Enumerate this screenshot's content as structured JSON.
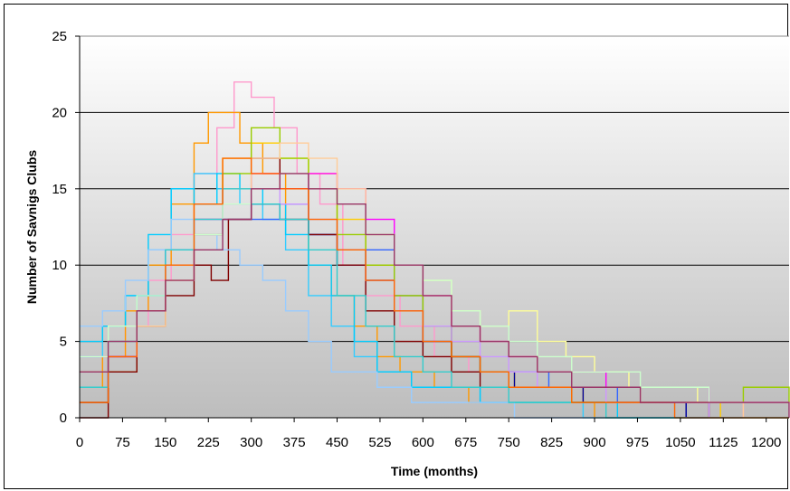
{
  "chart_data": {
    "type": "line",
    "title": "",
    "xlabel": "Time (months)",
    "ylabel": "Number of Savnigs Clubs",
    "xlim": [
      0,
      1240
    ],
    "ylim": [
      0,
      25
    ],
    "x_ticks": [
      "0",
      "75",
      "150",
      "225",
      "300",
      "375",
      "450",
      "525",
      "600",
      "675",
      "750",
      "825",
      "900",
      "975",
      "1050",
      "1125",
      "1200"
    ],
    "y_ticks": [
      "0",
      "5",
      "10",
      "15",
      "20",
      "25"
    ],
    "grid": "horizontal",
    "legend": "none",
    "colors": [
      "#ff99cc",
      "#ff9900",
      "#ffcc00",
      "#ffff99",
      "#33ccff",
      "#00ccff",
      "#3366ff",
      "#000099",
      "#800000",
      "#99cc00",
      "#ff00ff",
      "#cc99ff",
      "#99ccff",
      "#ffcc99",
      "#33cccc",
      "#ccffcc",
      "#ff6600",
      "#993366"
    ],
    "series": [
      {
        "x": [
          0,
          40,
          80,
          120,
          160,
          200,
          240,
          270,
          300,
          340,
          380,
          420,
          460,
          500,
          560,
          620,
          680,
          740,
          800,
          860,
          920,
          980,
          1040,
          1100,
          1160,
          1240
        ],
        "values": [
          3,
          4,
          6,
          9,
          12,
          16,
          19,
          22,
          21,
          19,
          16,
          14,
          10,
          8,
          6,
          4,
          3,
          3,
          2,
          2,
          1,
          1,
          1,
          1,
          0,
          0
        ]
      },
      {
        "x": [
          0,
          40,
          80,
          120,
          160,
          200,
          225,
          250,
          280,
          320,
          360,
          400,
          440,
          480,
          520,
          560,
          620,
          680,
          740,
          820,
          900,
          980,
          1060,
          1140,
          1240
        ],
        "values": [
          2,
          4,
          7,
          10,
          14,
          18,
          20,
          20,
          18,
          16,
          13,
          10,
          8,
          6,
          4,
          3,
          2,
          1,
          1,
          1,
          0,
          0,
          0,
          0,
          0
        ]
      },
      {
        "x": [
          0,
          50,
          100,
          150,
          200,
          250,
          300,
          350,
          400,
          450,
          500,
          550,
          600,
          650,
          700,
          760,
          820,
          880,
          940,
          1000,
          1060,
          1120,
          1180,
          1240
        ],
        "values": [
          1,
          3,
          6,
          10,
          14,
          17,
          18,
          17,
          16,
          13,
          10,
          8,
          6,
          4,
          3,
          2,
          2,
          1,
          1,
          1,
          1,
          0,
          0,
          0
        ]
      },
      {
        "x": [
          0,
          50,
          100,
          150,
          200,
          250,
          300,
          350,
          400,
          450,
          500,
          550,
          600,
          650,
          700,
          750,
          800,
          850,
          900,
          960,
          1020,
          1080,
          1140,
          1240
        ],
        "values": [
          3,
          4,
          6,
          9,
          12,
          15,
          16,
          17,
          16,
          14,
          12,
          10,
          9,
          7,
          6,
          7,
          5,
          4,
          3,
          2,
          2,
          1,
          1,
          1
        ]
      },
      {
        "x": [
          0,
          40,
          80,
          120,
          160,
          200,
          240,
          280,
          320,
          360,
          400,
          440,
          480,
          520,
          580,
          640,
          700,
          760,
          820,
          880,
          960,
          1040,
          1120,
          1240
        ],
        "values": [
          4,
          6,
          8,
          11,
          15,
          16,
          15,
          14,
          13,
          11,
          8,
          6,
          4,
          3,
          2,
          2,
          1,
          1,
          1,
          0,
          0,
          0,
          0,
          0
        ]
      },
      {
        "x": [
          0,
          40,
          80,
          120,
          160,
          200,
          240,
          280,
          320,
          360,
          400,
          440,
          480,
          520,
          580,
          640,
          700,
          780,
          860,
          940,
          1020,
          1100,
          1180,
          1240
        ],
        "values": [
          5,
          6,
          8,
          12,
          15,
          14,
          16,
          15,
          14,
          12,
          10,
          8,
          5,
          3,
          2,
          2,
          1,
          1,
          1,
          0,
          0,
          0,
          0,
          0
        ]
      },
      {
        "x": [
          0,
          50,
          100,
          150,
          200,
          250,
          300,
          350,
          400,
          450,
          500,
          550,
          600,
          650,
          700,
          760,
          820,
          880,
          940,
          1000,
          1060,
          1120,
          1180,
          1240
        ],
        "values": [
          2,
          5,
          8,
          11,
          13,
          14,
          13,
          14,
          12,
          10,
          11,
          8,
          6,
          4,
          3,
          3,
          2,
          2,
          1,
          1,
          0,
          0,
          0,
          0
        ]
      },
      {
        "x": [
          0,
          50,
          100,
          150,
          200,
          250,
          300,
          350,
          400,
          450,
          500,
          550,
          600,
          650,
          700,
          760,
          820,
          880,
          940,
          1000,
          1060,
          1120,
          1180,
          1240
        ],
        "values": [
          1,
          4,
          7,
          10,
          12,
          13,
          14,
          13,
          12,
          11,
          9,
          7,
          5,
          4,
          3,
          2,
          2,
          1,
          1,
          1,
          0,
          0,
          0,
          0
        ]
      },
      {
        "x": [
          0,
          50,
          100,
          150,
          200,
          230,
          260,
          300,
          350,
          400,
          450,
          500,
          550,
          600,
          650,
          700,
          750,
          800,
          860,
          920,
          980,
          1040,
          1100,
          1240
        ],
        "values": [
          0,
          3,
          6,
          8,
          10,
          9,
          13,
          17,
          15,
          12,
          10,
          7,
          5,
          4,
          3,
          2,
          2,
          2,
          1,
          1,
          1,
          1,
          0,
          0
        ]
      },
      {
        "x": [
          0,
          50,
          100,
          150,
          200,
          250,
          300,
          350,
          400,
          450,
          500,
          550,
          600,
          650,
          700,
          750,
          800,
          860,
          920,
          980,
          1040,
          1100,
          1160,
          1240
        ],
        "values": [
          3,
          5,
          7,
          10,
          13,
          16,
          19,
          17,
          15,
          12,
          10,
          8,
          6,
          4,
          3,
          2,
          2,
          1,
          1,
          1,
          1,
          1,
          2,
          1
        ]
      },
      {
        "x": [
          0,
          50,
          100,
          150,
          200,
          250,
          300,
          350,
          400,
          450,
          500,
          550,
          600,
          650,
          700,
          750,
          800,
          860,
          920,
          980,
          1040,
          1100,
          1160,
          1240
        ],
        "values": [
          2,
          4,
          7,
          10,
          13,
          15,
          16,
          15,
          16,
          15,
          13,
          10,
          8,
          6,
          5,
          4,
          3,
          3,
          2,
          2,
          2,
          1,
          1,
          1
        ]
      },
      {
        "x": [
          0,
          50,
          100,
          150,
          200,
          250,
          300,
          350,
          400,
          450,
          500,
          550,
          600,
          650,
          700,
          750,
          800,
          860,
          920,
          980,
          1040,
          1100,
          1160,
          1240
        ],
        "values": [
          4,
          5,
          7,
          10,
          13,
          14,
          15,
          14,
          13,
          11,
          9,
          7,
          6,
          5,
          4,
          3,
          2,
          2,
          1,
          1,
          1,
          0,
          0,
          0
        ]
      },
      {
        "x": [
          0,
          40,
          80,
          120,
          160,
          200,
          240,
          280,
          320,
          360,
          400,
          440,
          480,
          520,
          580,
          640,
          700,
          760,
          820,
          880,
          960,
          1040,
          1120,
          1240
        ],
        "values": [
          6,
          7,
          9,
          11,
          13,
          12,
          11,
          10,
          9,
          7,
          5,
          3,
          3,
          2,
          1,
          1,
          1,
          0,
          0,
          0,
          0,
          0,
          0,
          0
        ]
      },
      {
        "x": [
          0,
          50,
          100,
          150,
          200,
          250,
          300,
          350,
          400,
          450,
          500,
          550,
          600,
          650,
          700,
          750,
          800,
          860,
          920,
          980,
          1040,
          1100,
          1160,
          1240
        ],
        "values": [
          3,
          5,
          6,
          9,
          12,
          15,
          17,
          18,
          17,
          15,
          12,
          10,
          8,
          6,
          5,
          4,
          3,
          2,
          2,
          1,
          1,
          1,
          0,
          0
        ]
      },
      {
        "x": [
          0,
          50,
          100,
          150,
          200,
          250,
          300,
          350,
          400,
          450,
          500,
          550,
          600,
          650,
          700,
          750,
          800,
          860,
          920,
          980,
          1040,
          1100,
          1160,
          1240
        ],
        "values": [
          2,
          5,
          8,
          11,
          13,
          15,
          14,
          13,
          11,
          8,
          6,
          4,
          3,
          2,
          2,
          1,
          1,
          1,
          0,
          0,
          0,
          0,
          0,
          0
        ]
      },
      {
        "x": [
          0,
          50,
          100,
          150,
          200,
          250,
          300,
          350,
          400,
          450,
          500,
          550,
          600,
          650,
          700,
          750,
          800,
          860,
          920,
          980,
          1040,
          1100,
          1160,
          1240
        ],
        "values": [
          4,
          6,
          8,
          10,
          12,
          14,
          15,
          16,
          15,
          14,
          12,
          10,
          9,
          7,
          6,
          5,
          4,
          3,
          3,
          2,
          2,
          1,
          1,
          1
        ]
      },
      {
        "x": [
          0,
          50,
          100,
          150,
          200,
          250,
          300,
          350,
          400,
          450,
          500,
          550,
          600,
          650,
          700,
          750,
          800,
          860,
          920,
          980,
          1040,
          1100,
          1160,
          1240
        ],
        "values": [
          1,
          4,
          7,
          10,
          14,
          17,
          16,
          15,
          13,
          11,
          9,
          7,
          5,
          4,
          3,
          2,
          2,
          1,
          1,
          1,
          0,
          0,
          0,
          0
        ]
      },
      {
        "x": [
          0,
          50,
          100,
          150,
          200,
          250,
          300,
          350,
          400,
          450,
          500,
          550,
          600,
          650,
          700,
          750,
          800,
          860,
          920,
          980,
          1040,
          1100,
          1160,
          1240
        ],
        "values": [
          3,
          5,
          7,
          9,
          11,
          13,
          15,
          16,
          15,
          14,
          12,
          10,
          8,
          6,
          5,
          4,
          3,
          2,
          2,
          1,
          1,
          1,
          1,
          0
        ]
      }
    ]
  }
}
